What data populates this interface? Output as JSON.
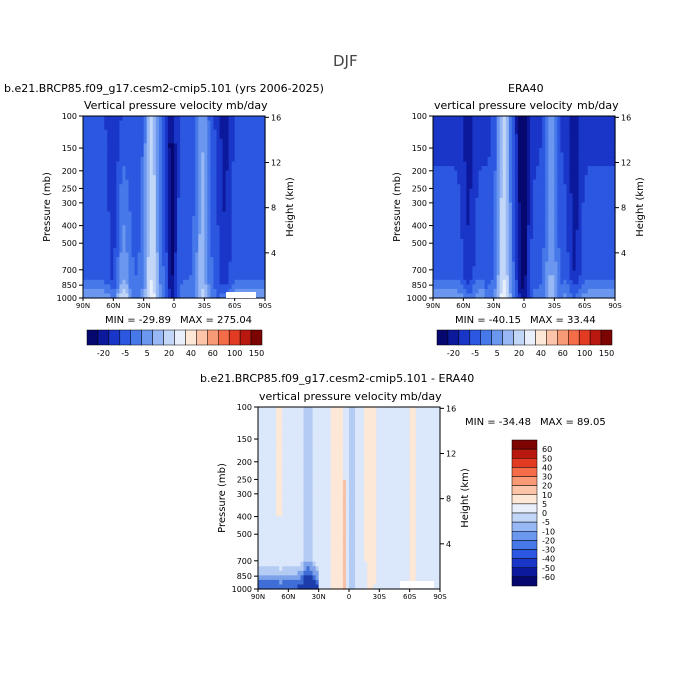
{
  "page_title": "DJF",
  "colors": {
    "scale_a": [
      "#07086f",
      "#0c199c",
      "#1a36c8",
      "#2c57e0",
      "#4778ea",
      "#6b97ef",
      "#97b8f4",
      "#c2d6f8",
      "#e9f0fc",
      "#fde7d6",
      "#fcc4a8",
      "#f99a76",
      "#f46c48",
      "#e33b22",
      "#b8180e",
      "#7c0504"
    ],
    "scale_b": [
      "#07086f",
      "#0c199c",
      "#1a36c8",
      "#2c57e0",
      "#4778ea",
      "#6b97ef",
      "#97b8f4",
      "#c2d6f8",
      "#e9f0fc",
      "#fde7d6",
      "#fcc4a8",
      "#f99a76",
      "#f46c48",
      "#e33b22",
      "#b8180e",
      "#7c0504"
    ]
  },
  "legend_a": {
    "labels": [
      "-20",
      "-5",
      "5",
      "20",
      "40",
      "60",
      "100",
      "150"
    ]
  },
  "legend_b": {
    "labels": [
      "60",
      "50",
      "40",
      "30",
      "20",
      "10",
      "5",
      "0",
      "-5",
      "-10",
      "-20",
      "-30",
      "-40",
      "-50",
      "-60"
    ]
  },
  "chart_data": [
    {
      "type": "heatmap",
      "title": "b.e21.BRCP85.f09_g17.cesm2-cmip5.101 (yrs 2006-2025)",
      "subtitle_left": "Vertical pressure velocity",
      "subtitle_right": "mb/day",
      "ylabel": "Pressure (mb)",
      "ylabel_right": "Height (km)",
      "x_ticks": [
        "90N",
        "60N",
        "30N",
        "0",
        "30S",
        "60S",
        "90S"
      ],
      "y_ticks": [
        "100",
        "150",
        "200",
        "250",
        "300",
        "400",
        "500",
        "700",
        "850",
        "1000"
      ],
      "y_right_ticks": [
        "16",
        "12",
        "8",
        "4"
      ],
      "min_label": "MIN = -29.89",
      "max_label": "MAX = 275.04",
      "ylim": [
        1000,
        100
      ],
      "xlim": [
        90,
        -90
      ]
    },
    {
      "type": "heatmap",
      "title": "ERA40",
      "subtitle_left": "vertical pressure velocity",
      "subtitle_right": "mb/day",
      "ylabel": "Pressure (mb)",
      "ylabel_right": "Height (km)",
      "x_ticks": [
        "90N",
        "60N",
        "30N",
        "0",
        "30S",
        "60S",
        "90S"
      ],
      "y_ticks": [
        "100",
        "150",
        "200",
        "250",
        "300",
        "400",
        "500",
        "700",
        "850",
        "1000"
      ],
      "y_right_ticks": [
        "16",
        "12",
        "8",
        "4"
      ],
      "min_label": "MIN = -40.15",
      "max_label": "MAX = 33.44",
      "ylim": [
        1000,
        100
      ],
      "xlim": [
        90,
        -90
      ]
    },
    {
      "type": "heatmap",
      "title": "b.e21.BRCP85.f09_g17.cesm2-cmip5.101 - ERA40",
      "subtitle_left": "vertical pressure velocity",
      "subtitle_right": "mb/day",
      "ylabel": "Pressure (mb)",
      "ylabel_right": "Height (km)",
      "x_ticks": [
        "90N",
        "60N",
        "30N",
        "0",
        "30S",
        "60S",
        "90S"
      ],
      "y_ticks": [
        "100",
        "150",
        "200",
        "250",
        "300",
        "400",
        "500",
        "700",
        "850",
        "1000"
      ],
      "y_right_ticks": [
        "16",
        "12",
        "8",
        "4"
      ],
      "min_label": "MIN = -34.48",
      "max_label": "MAX = 89.05",
      "ylim": [
        1000,
        100
      ],
      "xlim": [
        90,
        -90
      ]
    }
  ]
}
